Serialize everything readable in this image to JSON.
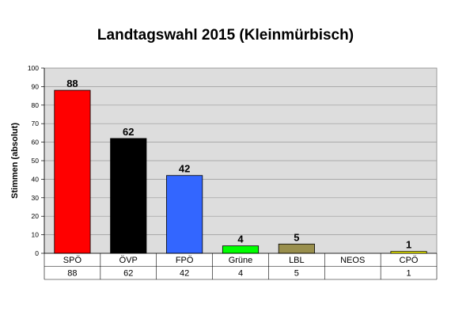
{
  "chart_data": {
    "type": "bar",
    "title": "Landtagswahl 2015 (Kleinmürbisch)",
    "xlabel": "",
    "ylabel": "Stimmen (absolut)",
    "ylim": [
      0,
      100
    ],
    "yticks": [
      0,
      10,
      20,
      30,
      40,
      50,
      60,
      70,
      80,
      90,
      100
    ],
    "grid": true,
    "legend": "none",
    "data_table": true,
    "categories": [
      "SPÖ",
      "ÖVP",
      "FPÖ",
      "Grüne",
      "LBL",
      "NEOS",
      "CPÖ"
    ],
    "values": [
      88,
      62,
      42,
      4,
      5,
      null,
      1
    ],
    "table_values": [
      "88",
      "62",
      "42",
      "4",
      "5",
      "",
      "1"
    ],
    "data_labels": [
      "88",
      "62",
      "42",
      "4",
      "5",
      "",
      "1"
    ],
    "colors": [
      "#ff0000",
      "#000000",
      "#3366ff",
      "#00ff00",
      "#998f4d",
      "#ffffff",
      "#ffff00"
    ],
    "plot_background": "#dddddd"
  }
}
